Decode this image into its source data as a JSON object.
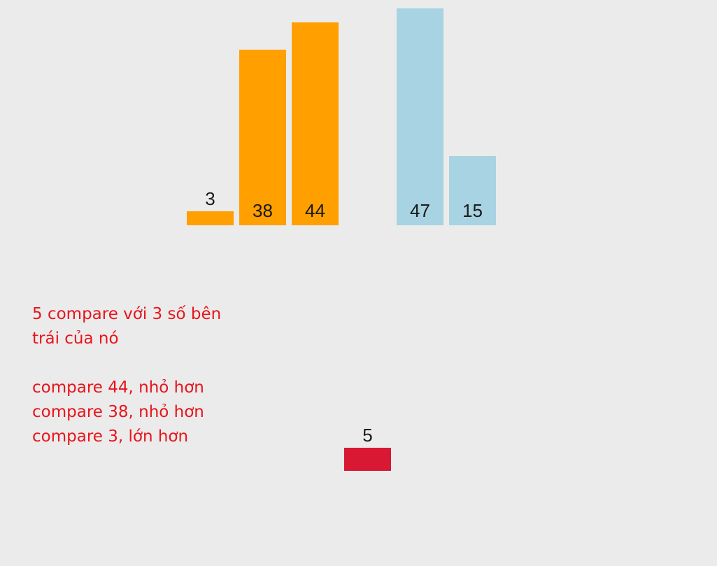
{
  "colors": {
    "background": "#ebebeb",
    "sorted": "#ff9f00",
    "unsorted": "#a8d3e2",
    "current": "#d91833",
    "note_text": "#e8141c",
    "label_text": "#1a1a1a"
  },
  "bars": [
    {
      "value": 3,
      "label": "3",
      "state": "sorted"
    },
    {
      "value": 38,
      "label": "38",
      "state": "sorted"
    },
    {
      "value": 44,
      "label": "44",
      "state": "sorted"
    },
    {
      "value": 47,
      "label": "47",
      "state": "unsorted"
    },
    {
      "value": 15,
      "label": "15",
      "state": "unsorted"
    }
  ],
  "current_element": {
    "value": 5,
    "label": "5",
    "state": "current"
  },
  "notes": [
    "5 compare với 3 số bên",
    "trái của nó",
    "",
    "compare 44, nhỏ hơn",
    "compare 38, nhỏ hơn",
    "compare 3, lớn hơn"
  ]
}
